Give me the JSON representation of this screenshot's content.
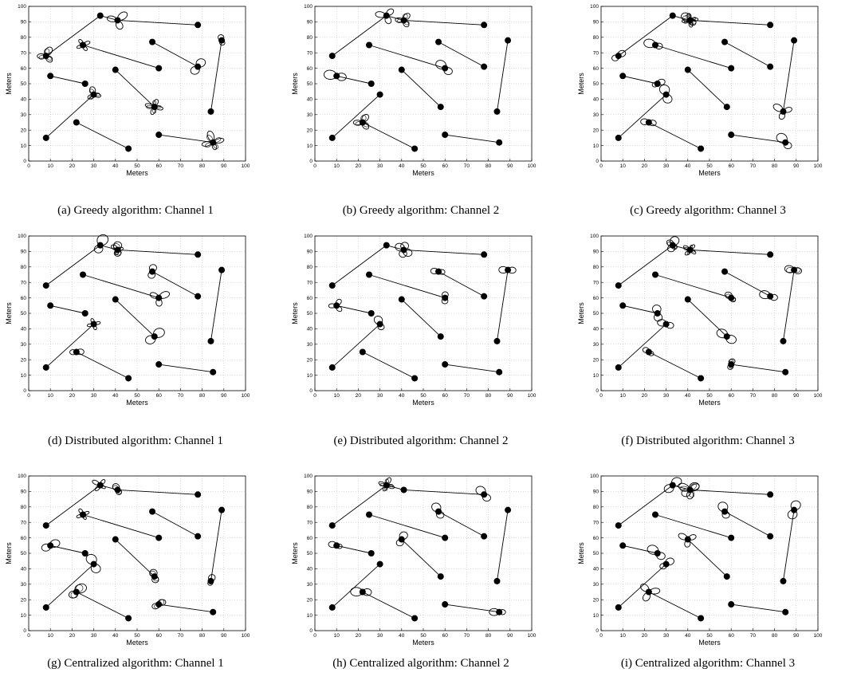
{
  "chart_data": {
    "type": "scatter",
    "xlabel": "Meters",
    "ylabel": "Meters",
    "xlim": [
      0,
      100
    ],
    "ylim": [
      0,
      100
    ],
    "xticks": [
      0,
      10,
      20,
      30,
      40,
      50,
      60,
      70,
      80,
      90,
      100
    ],
    "yticks": [
      0,
      10,
      20,
      30,
      40,
      50,
      60,
      70,
      80,
      90,
      100
    ],
    "grid": true,
    "links": [
      {
        "tx": [
          33,
          94
        ],
        "rx": [
          41,
          91
        ]
      },
      {
        "tx": [
          78,
          88
        ],
        "rx": [
          41,
          91
        ]
      },
      {
        "tx": [
          8,
          68
        ],
        "rx": [
          33,
          94
        ]
      },
      {
        "tx": [
          25,
          75
        ],
        "rx": [
          60,
          60
        ]
      },
      {
        "tx": [
          78,
          61
        ],
        "rx": [
          57,
          77
        ]
      },
      {
        "tx": [
          84,
          32
        ],
        "rx": [
          89,
          78
        ]
      },
      {
        "tx": [
          26,
          50
        ],
        "rx": [
          10,
          55
        ]
      },
      {
        "tx": [
          40,
          59
        ],
        "rx": [
          58,
          35
        ]
      },
      {
        "tx": [
          8,
          15
        ],
        "rx": [
          30,
          43
        ]
      },
      {
        "tx": [
          46,
          8
        ],
        "rx": [
          22,
          25
        ]
      },
      {
        "tx": [
          60,
          17
        ],
        "rx": [
          85,
          12
        ]
      }
    ],
    "panels": [
      {
        "caption": "(a) Greedy algorithm: Channel 1"
      },
      {
        "caption": "(b) Greedy algorithm: Channel 2"
      },
      {
        "caption": "(c) Greedy algorithm: Channel 3"
      },
      {
        "caption": "(d) Distributed algorithm: Channel 1"
      },
      {
        "caption": "(e) Distributed algorithm: Channel 2"
      },
      {
        "caption": "(f) Distributed algorithm: Channel 3"
      },
      {
        "caption": "(g) Centralized algorithm: Channel 1"
      },
      {
        "caption": "(h) Centralized algorithm: Channel 2"
      },
      {
        "caption": "(i) Centralized algorithm: Channel 3"
      }
    ]
  }
}
